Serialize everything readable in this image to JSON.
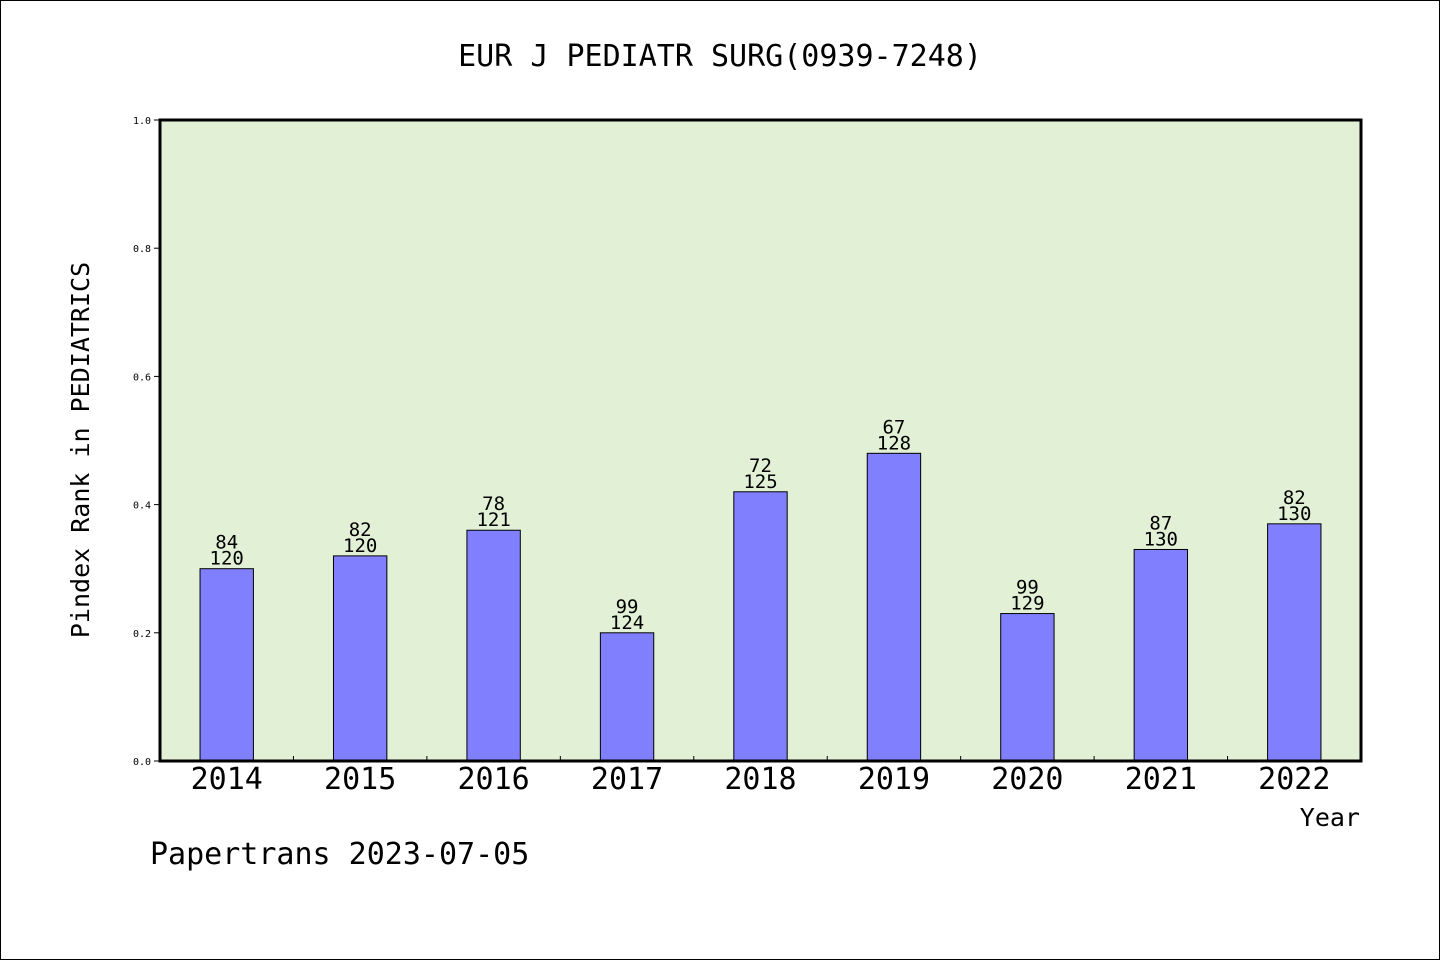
{
  "chart_data": {
    "type": "bar",
    "title": "EUR J PEDIATR SURG(0939-7248)",
    "xlabel": "Year",
    "ylabel": "Pindex Rank in PEDIATRICS",
    "ylim": [
      0,
      1.0
    ],
    "yticks": [
      "0.0",
      "0.2",
      "0.4",
      "0.6",
      "0.8",
      "1.0"
    ],
    "categories": [
      "2014",
      "2015",
      "2016",
      "2017",
      "2018",
      "2019",
      "2020",
      "2021",
      "2022"
    ],
    "values": [
      0.3,
      0.32,
      0.36,
      0.2,
      0.42,
      0.48,
      0.23,
      0.33,
      0.37
    ],
    "rank_labels": [
      "84",
      "82",
      "78",
      "99",
      "72",
      "67",
      "99",
      "87",
      "82"
    ],
    "total_labels": [
      "120",
      "120",
      "121",
      "124",
      "125",
      "128",
      "129",
      "130",
      "130"
    ],
    "grid": false,
    "colors": {
      "plot_background": "#e2f0d6",
      "bar_fill": "#8080ff",
      "bar_stroke": "#000000"
    }
  },
  "footer": {
    "credit": "Papertrans 2023-07-05"
  }
}
